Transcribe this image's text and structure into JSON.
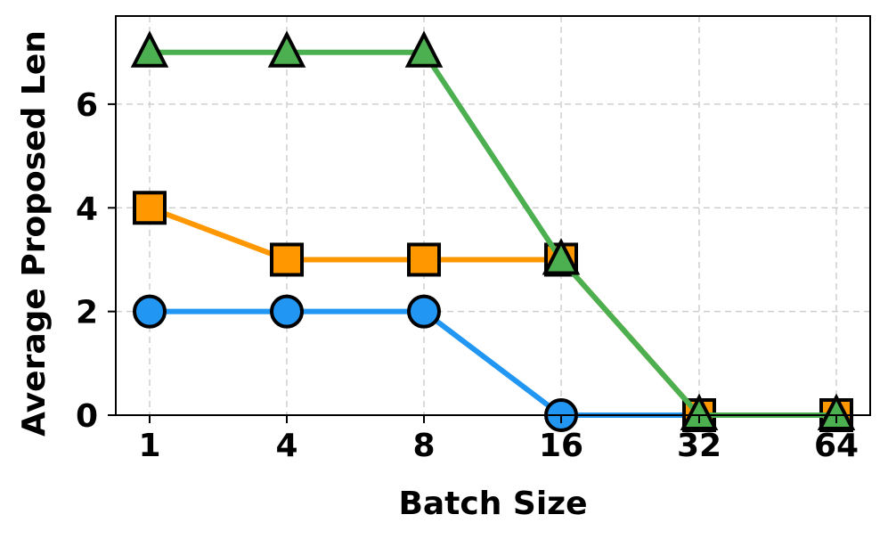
{
  "chart_data": {
    "type": "line",
    "xlabel": "Batch Size",
    "ylabel": "Average Proposed Len",
    "categories": [
      "1",
      "4",
      "8",
      "16",
      "32",
      "64"
    ],
    "ylim": [
      0,
      7.7
    ],
    "yticks": [
      0,
      2,
      4,
      6
    ],
    "grid": true,
    "series": [
      {
        "values": [
          2,
          2,
          2,
          0,
          0,
          0
        ],
        "color": "#2196F3",
        "marker": "circle"
      },
      {
        "values": [
          4,
          3,
          3,
          3,
          0,
          0
        ],
        "color": "#FF9800",
        "marker": "square"
      },
      {
        "values": [
          7,
          7,
          7,
          3,
          0,
          0
        ],
        "color": "#4CAF50",
        "marker": "triangle"
      }
    ]
  }
}
